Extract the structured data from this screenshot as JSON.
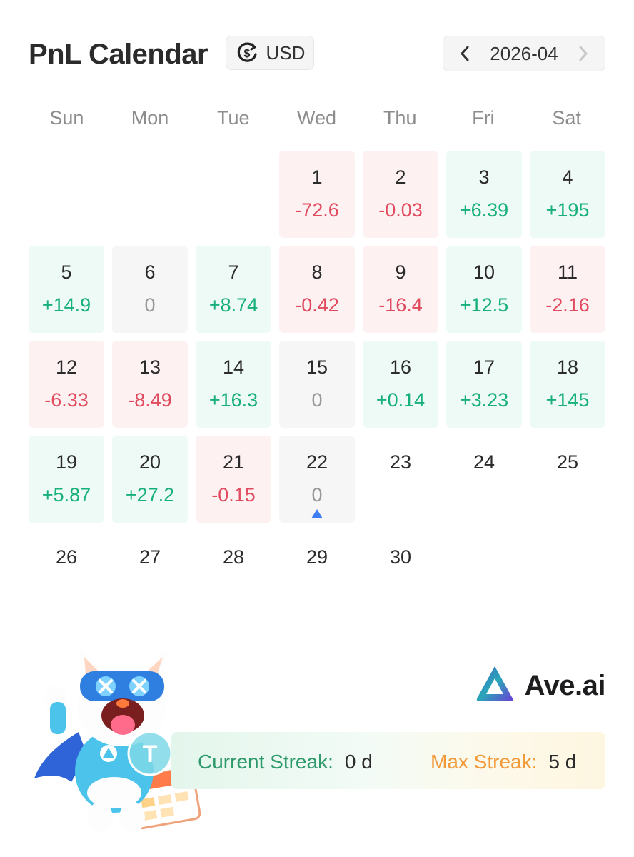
{
  "header": {
    "title": "PnL Calendar",
    "currency_label": "USD",
    "month_label": "2026-04",
    "prev_icon": "chevron-left-icon",
    "next_icon": "chevron-right-icon"
  },
  "weekdays": [
    "Sun",
    "Mon",
    "Tue",
    "Wed",
    "Thu",
    "Fri",
    "Sat"
  ],
  "calendar": {
    "leading_empty": 3,
    "today": "22",
    "days": [
      {
        "day": "1",
        "pnl": "-72.6",
        "status": "loss"
      },
      {
        "day": "2",
        "pnl": "-0.03",
        "status": "loss"
      },
      {
        "day": "3",
        "pnl": "+6.39",
        "status": "gain"
      },
      {
        "day": "4",
        "pnl": "+195",
        "status": "gain"
      },
      {
        "day": "5",
        "pnl": "+14.9",
        "status": "gain"
      },
      {
        "day": "6",
        "pnl": "0",
        "status": "zero"
      },
      {
        "day": "7",
        "pnl": "+8.74",
        "status": "gain"
      },
      {
        "day": "8",
        "pnl": "-0.42",
        "status": "loss"
      },
      {
        "day": "9",
        "pnl": "-16.4",
        "status": "loss"
      },
      {
        "day": "10",
        "pnl": "+12.5",
        "status": "gain"
      },
      {
        "day": "11",
        "pnl": "-2.16",
        "status": "loss"
      },
      {
        "day": "12",
        "pnl": "-6.33",
        "status": "loss"
      },
      {
        "day": "13",
        "pnl": "-8.49",
        "status": "loss"
      },
      {
        "day": "14",
        "pnl": "+16.3",
        "status": "gain"
      },
      {
        "day": "15",
        "pnl": "0",
        "status": "zero"
      },
      {
        "day": "16",
        "pnl": "+0.14",
        "status": "gain"
      },
      {
        "day": "17",
        "pnl": "+3.23",
        "status": "gain"
      },
      {
        "day": "18",
        "pnl": "+145",
        "status": "gain"
      },
      {
        "day": "19",
        "pnl": "+5.87",
        "status": "gain"
      },
      {
        "day": "20",
        "pnl": "+27.2",
        "status": "gain"
      },
      {
        "day": "21",
        "pnl": "-0.15",
        "status": "loss"
      },
      {
        "day": "22",
        "pnl": "0",
        "status": "zero"
      },
      {
        "day": "23",
        "pnl": "",
        "status": "future"
      },
      {
        "day": "24",
        "pnl": "",
        "status": "future"
      },
      {
        "day": "25",
        "pnl": "",
        "status": "future"
      },
      {
        "day": "26",
        "pnl": "",
        "status": "future"
      },
      {
        "day": "27",
        "pnl": "",
        "status": "future"
      },
      {
        "day": "28",
        "pnl": "",
        "status": "future"
      },
      {
        "day": "29",
        "pnl": "",
        "status": "future"
      },
      {
        "day": "30",
        "pnl": "",
        "status": "future"
      }
    ]
  },
  "brand": {
    "name": "Ave.ai"
  },
  "streak": {
    "current_label": "Current Streak:",
    "current_value": "0 d",
    "max_label": "Max Streak:",
    "max_value": "5 d"
  },
  "colors": {
    "loss": "#e14b5f",
    "gain": "#18b07a",
    "zero": "#999999",
    "today_marker": "#3d7ef5",
    "current_streak": "#2e9a6b",
    "max_streak": "#f2993a"
  },
  "icons": {
    "currency": "currency-exchange-icon",
    "mascot": "mascot-illustration",
    "logo": "ave-logo-icon"
  }
}
